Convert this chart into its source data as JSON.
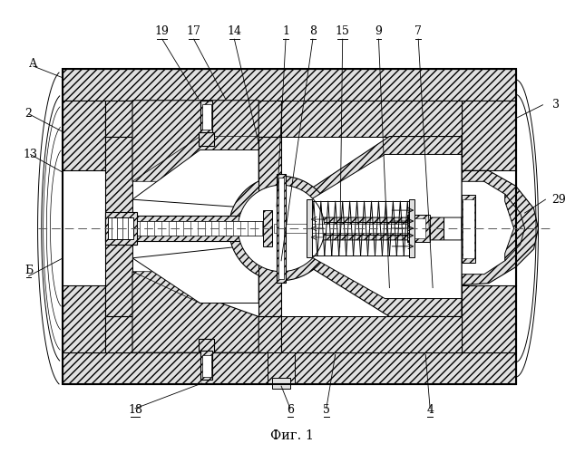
{
  "title": "Фиг. 1",
  "bg": "#ffffff",
  "lc": "#000000",
  "hatch": "////",
  "fig_w": 6.45,
  "fig_h": 5.0
}
